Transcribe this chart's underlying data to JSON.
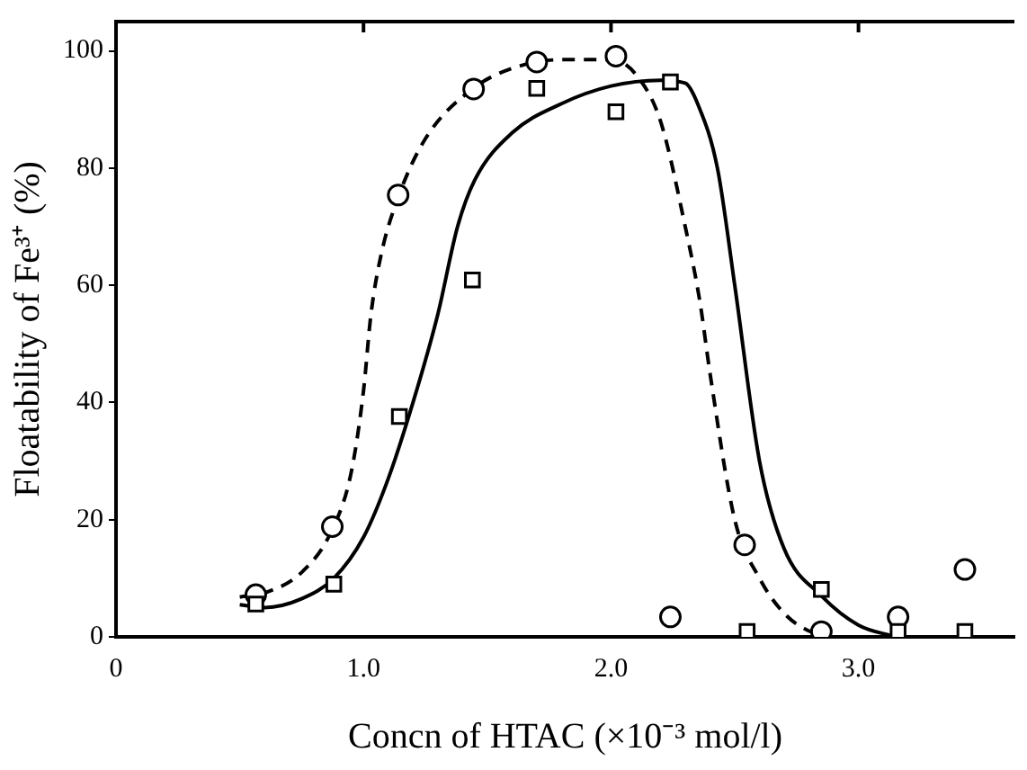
{
  "chart_data": {
    "type": "scatter",
    "xlabel": "Concn of HTAC (×10⁻³ mol/l)",
    "ylabel": "Floatability of Fe³⁺ (%)",
    "xlim": [
      0,
      3.63
    ],
    "xticks": [
      0,
      {
        "value": 1,
        "label": "1.0"
      },
      {
        "value": 2,
        "label": "2.0"
      },
      {
        "value": 3,
        "label": "3.0"
      }
    ],
    "ylim": [
      0,
      105
    ],
    "yticks": [
      0,
      20,
      40,
      60,
      80,
      100
    ],
    "grid": false,
    "legend": false,
    "series": [
      {
        "type": "scatter",
        "marker": "circle",
        "color": "#000000",
        "x": [
          0.565,
          0.874,
          1.14,
          1.445,
          1.7,
          2.02,
          2.24,
          2.54,
          2.85,
          3.16,
          3.43
        ],
        "values": [
          7.2,
          18.8,
          75.4,
          93.5,
          98.1,
          99.1,
          3.4,
          15.7,
          0.9,
          3.4,
          11.5
        ]
      },
      {
        "type": "scatter",
        "marker": "square",
        "color": "#000000",
        "x": [
          0.565,
          0.88,
          1.145,
          1.44,
          1.7,
          2.02,
          2.24,
          2.55,
          2.85,
          3.16,
          3.43
        ],
        "values": [
          5.6,
          9.0,
          37.6,
          60.9,
          93.6,
          89.6,
          94.7,
          0.9,
          8.1,
          0.9,
          0.9
        ]
      },
      {
        "type": "line",
        "marker": "none",
        "line_style": "dashed",
        "color": "#000000",
        "x": [
          0.5,
          0.6,
          0.75,
          0.87,
          0.95,
          1.0,
          1.03,
          1.07,
          1.14,
          1.25,
          1.44,
          1.6,
          1.8,
          2.0,
          2.1,
          2.2,
          2.3,
          2.36,
          2.4,
          2.5,
          2.6,
          2.7,
          2.8,
          2.85
        ],
        "values": [
          6.8,
          7.5,
          11,
          18,
          28,
          42,
          55,
          65,
          75,
          85,
          93.5,
          97,
          98.5,
          98.5,
          96,
          88,
          70,
          57,
          45,
          20,
          10,
          4,
          1,
          0.5
        ]
      },
      {
        "type": "line",
        "marker": "none",
        "line_style": "solid",
        "color": "#000000",
        "x": [
          0.5,
          0.6,
          0.75,
          0.88,
          1.0,
          1.1,
          1.2,
          1.3,
          1.38,
          1.45,
          1.6,
          1.8,
          2.0,
          2.2,
          2.3,
          2.35,
          2.43,
          2.5,
          2.6,
          2.7,
          2.85,
          3.0,
          3.15
        ],
        "values": [
          5.5,
          5,
          6.5,
          10,
          17,
          27,
          40,
          55,
          70,
          78,
          86,
          91,
          94,
          95,
          94.5,
          91,
          80,
          60,
          30,
          15,
          7,
          2,
          0
        ]
      }
    ]
  }
}
